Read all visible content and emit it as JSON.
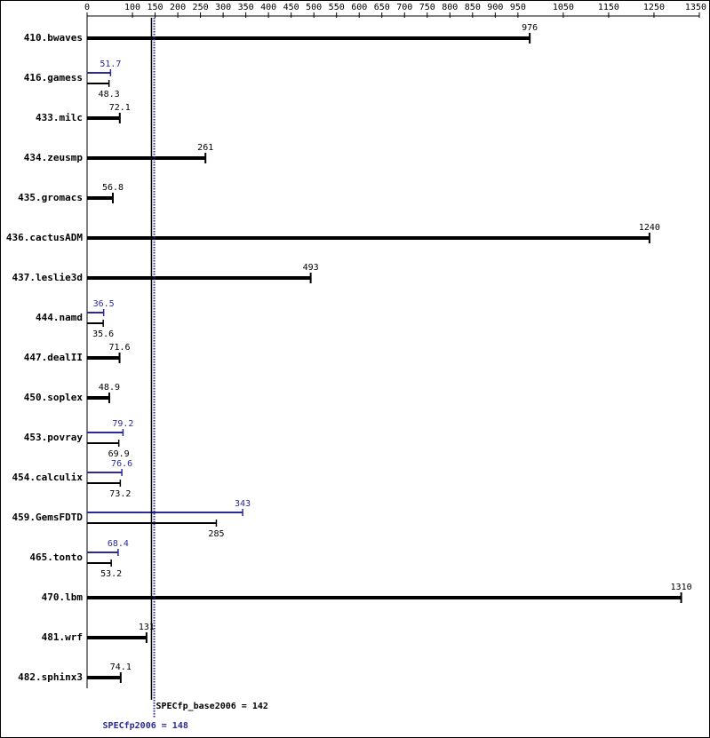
{
  "chart_data": {
    "type": "bar",
    "categories": [
      "410.bwaves",
      "416.gamess",
      "433.milc",
      "434.zeusmp",
      "435.gromacs",
      "436.cactusADM",
      "437.leslie3d",
      "444.namd",
      "447.dealII",
      "450.soplex",
      "453.povray",
      "454.calculix",
      "459.GemsFDTD",
      "465.tonto",
      "470.lbm",
      "481.wrf",
      "482.sphinx3"
    ],
    "series": [
      {
        "color": "#000000",
        "values": [
          976,
          48.3,
          72.1,
          261,
          56.8,
          1240,
          493,
          35.6,
          71.6,
          48.9,
          69.9,
          73.2,
          285,
          53.2,
          1310,
          131,
          74.1
        ]
      },
      {
        "color": "#2a2a9a",
        "values": [
          null,
          51.7,
          null,
          null,
          null,
          null,
          null,
          36.5,
          null,
          null,
          79.2,
          76.6,
          343,
          68.4,
          null,
          null,
          null
        ]
      }
    ],
    "xlim": [
      0,
      1350
    ],
    "xticks": [
      0,
      100,
      150,
      200,
      250,
      300,
      350,
      400,
      450,
      500,
      550,
      600,
      650,
      700,
      750,
      800,
      850,
      900,
      950,
      1050,
      1150,
      1250,
      1350
    ],
    "reference_lines": [
      {
        "label": "SPECfp_base2006 = 142",
        "value": 142,
        "color": "#000000"
      },
      {
        "label": "SPECfp2006 = 148",
        "value": 148,
        "color": "#2a2a9a"
      }
    ]
  }
}
